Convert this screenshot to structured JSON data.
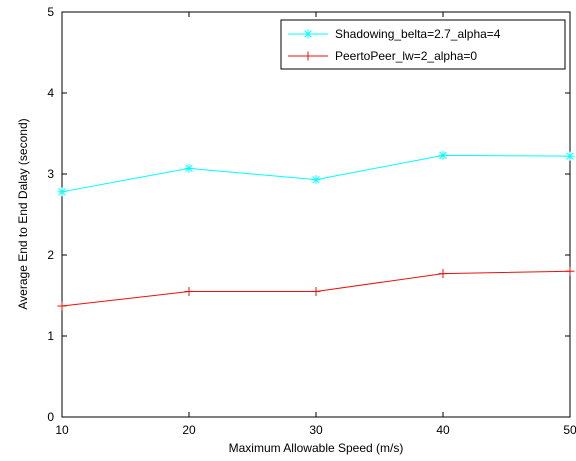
{
  "chart_data": {
    "type": "line",
    "title": "",
    "xlabel": "Maximum Allowable Speed (m/s)",
    "ylabel": "Average End to End Dalay (second)",
    "xlim": [
      10,
      50
    ],
    "ylim": [
      0,
      5
    ],
    "x": [
      10,
      20,
      30,
      40,
      50
    ],
    "xticks": [
      "10",
      "20",
      "30",
      "40",
      "50"
    ],
    "yticks": [
      "0",
      "1",
      "2",
      "3",
      "4",
      "5"
    ],
    "grid": false,
    "legend_position": "top-right",
    "series": [
      {
        "name": "Shadowing_belta=2.7_alpha=4",
        "values": [
          2.78,
          3.07,
          2.93,
          3.23,
          3.22
        ],
        "color": "#00ffff",
        "marker": "asterisk"
      },
      {
        "name": "PeertoPeer_lw=2_alpha=0",
        "values": [
          1.37,
          1.55,
          1.55,
          1.77,
          1.8
        ],
        "color": "#e8120c",
        "marker": "plus"
      }
    ]
  }
}
